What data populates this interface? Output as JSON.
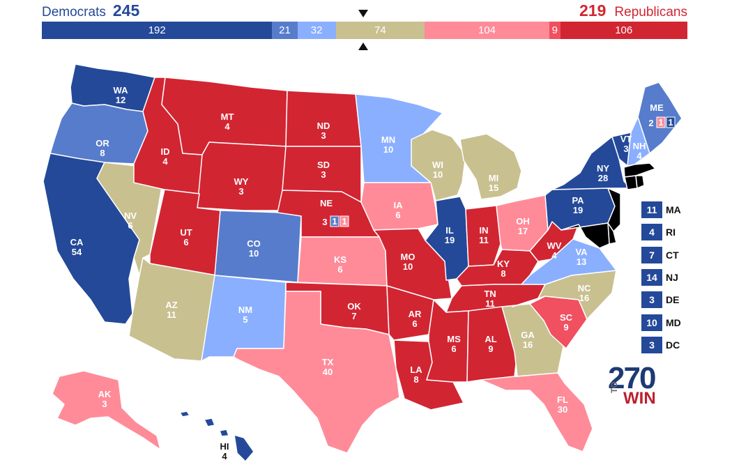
{
  "header": {
    "dem_label": "Democrats",
    "dem_total": "245",
    "rep_total": "219",
    "rep_label": "Republicans"
  },
  "colors": {
    "solid_d": "#244999",
    "likely_d": "#577ccc",
    "lean_d": "#8aafff",
    "tossup": "#c9c090",
    "lean_r": "#ff8b98",
    "tilt_r": "#f0505f",
    "likely_r": "#d22532",
    "solid_r": "#d22532",
    "blue_text": "#244999",
    "red_text": "#d22532"
  },
  "segments": [
    {
      "value": 192,
      "label": "192",
      "rating": "solid_d"
    },
    {
      "value": 21,
      "label": "21",
      "rating": "likely_d"
    },
    {
      "value": 32,
      "label": "32",
      "rating": "lean_d"
    },
    {
      "value": 74,
      "label": "74",
      "rating": "tossup"
    },
    {
      "value": 104,
      "label": "104",
      "rating": "lean_r"
    },
    {
      "value": 9,
      "label": "9",
      "rating": "tilt_r"
    },
    {
      "value": 106,
      "label": "106",
      "rating": "solid_r"
    }
  ],
  "states": {
    "WA": {
      "abbr": "WA",
      "ev": "12",
      "rating": "solid_d"
    },
    "OR": {
      "abbr": "OR",
      "ev": "8",
      "rating": "likely_d"
    },
    "CA": {
      "abbr": "CA",
      "ev": "54",
      "rating": "solid_d"
    },
    "NV": {
      "abbr": "NV",
      "ev": "6",
      "rating": "tossup"
    },
    "ID": {
      "abbr": "ID",
      "ev": "4",
      "rating": "solid_r"
    },
    "MT": {
      "abbr": "MT",
      "ev": "4",
      "rating": "solid_r"
    },
    "WY": {
      "abbr": "WY",
      "ev": "3",
      "rating": "solid_r"
    },
    "UT": {
      "abbr": "UT",
      "ev": "6",
      "rating": "solid_r"
    },
    "AZ": {
      "abbr": "AZ",
      "ev": "11",
      "rating": "tossup"
    },
    "CO": {
      "abbr": "CO",
      "ev": "10",
      "rating": "likely_d"
    },
    "NM": {
      "abbr": "NM",
      "ev": "5",
      "rating": "lean_d"
    },
    "ND": {
      "abbr": "ND",
      "ev": "3",
      "rating": "solid_r"
    },
    "SD": {
      "abbr": "SD",
      "ev": "3",
      "rating": "solid_r"
    },
    "NE": {
      "abbr": "NE",
      "ev": "3",
      "rating": "solid_r"
    },
    "KS": {
      "abbr": "KS",
      "ev": "6",
      "rating": "lean_r"
    },
    "OK": {
      "abbr": "OK",
      "ev": "7",
      "rating": "solid_r"
    },
    "TX": {
      "abbr": "TX",
      "ev": "40",
      "rating": "lean_r"
    },
    "MN": {
      "abbr": "MN",
      "ev": "10",
      "rating": "lean_d"
    },
    "IA": {
      "abbr": "IA",
      "ev": "6",
      "rating": "lean_r"
    },
    "MO": {
      "abbr": "MO",
      "ev": "10",
      "rating": "solid_r"
    },
    "AR": {
      "abbr": "AR",
      "ev": "6",
      "rating": "solid_r"
    },
    "LA": {
      "abbr": "LA",
      "ev": "8",
      "rating": "solid_r"
    },
    "WI": {
      "abbr": "WI",
      "ev": "10",
      "rating": "tossup"
    },
    "IL": {
      "abbr": "IL",
      "ev": "19",
      "rating": "solid_d"
    },
    "MI": {
      "abbr": "MI",
      "ev": "15",
      "rating": "tossup"
    },
    "IN": {
      "abbr": "IN",
      "ev": "11",
      "rating": "solid_r"
    },
    "OH": {
      "abbr": "OH",
      "ev": "17",
      "rating": "lean_r"
    },
    "KY": {
      "abbr": "KY",
      "ev": "8",
      "rating": "solid_r"
    },
    "TN": {
      "abbr": "TN",
      "ev": "11",
      "rating": "solid_r"
    },
    "MS": {
      "abbr": "MS",
      "ev": "6",
      "rating": "solid_r"
    },
    "AL": {
      "abbr": "AL",
      "ev": "9",
      "rating": "solid_r"
    },
    "GA": {
      "abbr": "GA",
      "ev": "16",
      "rating": "tossup"
    },
    "FL": {
      "abbr": "FL",
      "ev": "30",
      "rating": "lean_r"
    },
    "SC": {
      "abbr": "SC",
      "ev": "9",
      "rating": "tilt_r"
    },
    "NC": {
      "abbr": "NC",
      "ev": "16",
      "rating": "tossup"
    },
    "VA": {
      "abbr": "VA",
      "ev": "13",
      "rating": "lean_d"
    },
    "WV": {
      "abbr": "WV",
      "ev": "4",
      "rating": "solid_r"
    },
    "PA": {
      "abbr": "PA",
      "ev": "19",
      "rating": "solid_d"
    },
    "NY": {
      "abbr": "NY",
      "ev": "28",
      "rating": "solid_d"
    },
    "VT": {
      "abbr": "VT",
      "ev": "3",
      "rating": "solid_d"
    },
    "NH": {
      "abbr": "NH",
      "ev": "4",
      "rating": "lean_d"
    },
    "ME": {
      "abbr": "ME",
      "ev": "2",
      "rating": "likely_d"
    },
    "AK": {
      "abbr": "AK",
      "ev": "3",
      "rating": "lean_r"
    },
    "HI": {
      "abbr": "HI",
      "ev": "4",
      "rating": "solid_d"
    }
  },
  "districts": [
    {
      "state": "NE",
      "ev": "1",
      "rating": "likely_d"
    },
    {
      "state": "NE",
      "ev": "1",
      "rating": "lean_r"
    },
    {
      "state": "ME",
      "ev": "1",
      "rating": "lean_r"
    },
    {
      "state": "ME",
      "ev": "1",
      "rating": "solid_d"
    }
  ],
  "small_states": [
    {
      "abbr": "MA",
      "ev": "11",
      "rating": "solid_d"
    },
    {
      "abbr": "RI",
      "ev": "4",
      "rating": "solid_d"
    },
    {
      "abbr": "CT",
      "ev": "7",
      "rating": "solid_d"
    },
    {
      "abbr": "NJ",
      "ev": "14",
      "rating": "solid_d"
    },
    {
      "abbr": "DE",
      "ev": "3",
      "rating": "solid_d"
    },
    {
      "abbr": "MD",
      "ev": "10",
      "rating": "solid_d"
    },
    {
      "abbr": "DC",
      "ev": "3",
      "rating": "solid_d"
    }
  ],
  "logo": {
    "number": "270",
    "to": "TO",
    "win": "WIN"
  }
}
